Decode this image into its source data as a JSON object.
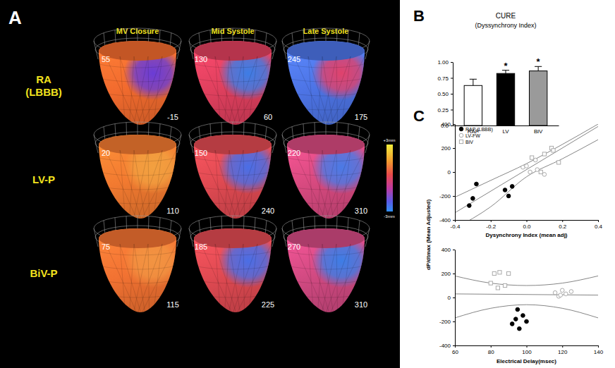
{
  "chart_data": [
    {
      "type": "surface_map",
      "panel": "A",
      "columns": [
        "MV Closure",
        "Mid Systole",
        "Late Systole"
      ],
      "rows": [
        "RA (LBBB)",
        "LV-P",
        "BiV-P"
      ],
      "cells": [
        [
          {
            "times": [
              55,
              -15
            ],
            "colors": [
              "#f26b2e",
              "#6a3cd6"
            ]
          },
          {
            "times": [
              130,
              60
            ],
            "colors": [
              "#e0405e",
              "#3d7de6"
            ]
          },
          {
            "times": [
              245,
              175
            ],
            "colors": [
              "#4d74e6",
              "#e0426c"
            ]
          }
        ],
        [
          {
            "times": [
              20,
              110
            ],
            "colors": [
              "#f27a30",
              "#f2a040"
            ]
          },
          {
            "times": [
              150,
              240
            ],
            "colors": [
              "#e04a52",
              "#4a6ee6"
            ]
          },
          {
            "times": [
              220,
              310
            ],
            "colors": [
              "#d84a80",
              "#4a7ae6"
            ]
          }
        ],
        [
          {
            "times": [
              75,
              115
            ],
            "colors": [
              "#f27232",
              "#f29442"
            ]
          },
          {
            "times": [
              185,
              225
            ],
            "colors": [
              "#e04a52",
              "#4a6ee6"
            ]
          },
          {
            "times": [
              270,
              310
            ],
            "colors": [
              "#d24a82",
              "#3d7de6"
            ]
          }
        ]
      ],
      "colorbar": {
        "range": [
          -3,
          3
        ],
        "ticks": [
          {
            "value": 3,
            "label": "+3mm"
          },
          {
            "value": -3,
            "label": "-3mm"
          }
        ]
      }
    },
    {
      "type": "bar",
      "panel": "B",
      "title": "CURE",
      "subtitle": "(Dyssynchrony Index)",
      "categories": [
        "RAP",
        "LV",
        "BiV"
      ],
      "values": [
        0.63,
        0.82,
        0.86
      ],
      "errors": [
        0.1,
        0.05,
        0.07
      ],
      "colors": [
        "#ffffff",
        "#000000",
        "#9a9a9a"
      ],
      "significance_labels": [
        null,
        "*",
        "*"
      ],
      "ylim": [
        0,
        1
      ],
      "yticks": [
        {
          "value": 0,
          "label": "0.0"
        },
        0.25,
        {
          "value": 0.5,
          "label": "0.50"
        },
        0.75,
        {
          "value": 1,
          "label": "1.00"
        }
      ]
    },
    {
      "type": "scatter",
      "panel": "C",
      "ylabel": "dP/dtmax (Mean Adjusted)",
      "xlabel": "Dysynchrony Index (mean adj)",
      "legend": "upper left",
      "xlim": [
        -0.4,
        0.4
      ],
      "xticks": [
        -0.4,
        -0.2,
        {
          "value": 0,
          "label": "0.0"
        },
        0.2,
        0.4
      ],
      "ylim": [
        -400,
        400
      ],
      "yticks": [
        -400,
        -200,
        0,
        200,
        400
      ],
      "series": [
        {
          "name": "RAP (LBBB)",
          "color": "#000000",
          "marker": "circle",
          "x": [
            -0.3,
            -0.28,
            -0.32,
            -0.12,
            -0.1,
            -0.08
          ],
          "values": [
            -220,
            -100,
            -280,
            -150,
            -200,
            -120
          ]
        },
        {
          "name": "LV-FW",
          "color": "#aaaaaa",
          "marker": "open-circle",
          "x": [
            -0.02,
            0.0,
            0.02,
            0.05,
            0.06,
            0.1
          ],
          "values": [
            40,
            50,
            0,
            100,
            20,
            -20
          ]
        },
        {
          "name": "BiV",
          "color": "#aaaaaa",
          "marker": "open-square",
          "x": [
            0.03,
            0.08,
            0.1,
            0.14,
            0.15,
            0.18
          ],
          "values": [
            120,
            0,
            150,
            200,
            180,
            80
          ]
        }
      ],
      "fit_lines": [
        {
          "x": [
            -0.4,
            0.4
          ],
          "values": [
            -340,
            380
          ]
        },
        {
          "x": [
            -0.4,
            -0.2,
            0,
            0.2,
            0.4
          ],
          "values": [
            -210,
            -70,
            70,
            230,
            400
          ]
        },
        {
          "x": [
            -0.4,
            -0.2,
            0,
            0.2,
            0.4
          ],
          "values": [
            -470,
            -290,
            -40,
            110,
            270
          ]
        }
      ]
    },
    {
      "type": "scatter",
      "xlabel": "Electrical Delay(msec)",
      "xlim": [
        60,
        140
      ],
      "xticks": [
        60,
        80,
        100,
        120,
        140
      ],
      "ylim": [
        -400,
        400
      ],
      "yticks": [
        -400,
        -200,
        0,
        200,
        400
      ],
      "series": [
        {
          "color": "#000000",
          "marker": "circle",
          "x": [
            92,
            94,
            95,
            96,
            98,
            100
          ],
          "values": [
            -220,
            -180,
            -100,
            -260,
            -150,
            -200
          ]
        },
        {
          "color": "#aaaaaa",
          "marker": "open-circle",
          "x": [
            116,
            118,
            119,
            120,
            122,
            125
          ],
          "values": [
            40,
            10,
            20,
            60,
            30,
            50
          ]
        },
        {
          "color": "#aaaaaa",
          "marker": "open-square",
          "x": [
            80,
            82,
            84,
            85,
            88,
            90
          ],
          "values": [
            120,
            200,
            80,
            210,
            100,
            200
          ]
        }
      ],
      "fit_lines": [
        {
          "x": [
            60,
            140
          ],
          "values": [
            30,
            20
          ]
        },
        {
          "x": [
            60,
            80,
            100,
            120,
            140
          ],
          "values": [
            180,
            120,
            100,
            120,
            180
          ]
        },
        {
          "x": [
            60,
            80,
            100,
            120,
            140
          ],
          "values": [
            -170,
            -90,
            -60,
            -90,
            -170
          ]
        }
      ]
    }
  ]
}
